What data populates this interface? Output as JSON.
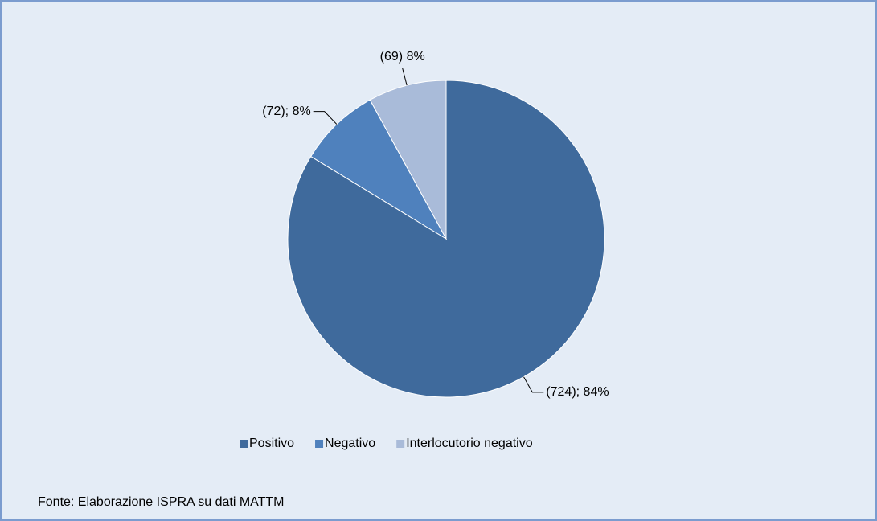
{
  "chart_data": {
    "type": "pie",
    "categories": [
      "Positivo",
      "Negativo",
      "Interlocutorio negativo"
    ],
    "values": [
      724,
      72,
      69
    ],
    "value_labels": [
      "(724); 84%",
      "(72); 8%",
      "(69) 8%"
    ],
    "colors": [
      "#3f6a9c",
      "#4f81bd",
      "#a9bbd9"
    ],
    "legend": "bottom",
    "source": "Fonte: Elaborazione ISPRA su dati MATTM"
  }
}
